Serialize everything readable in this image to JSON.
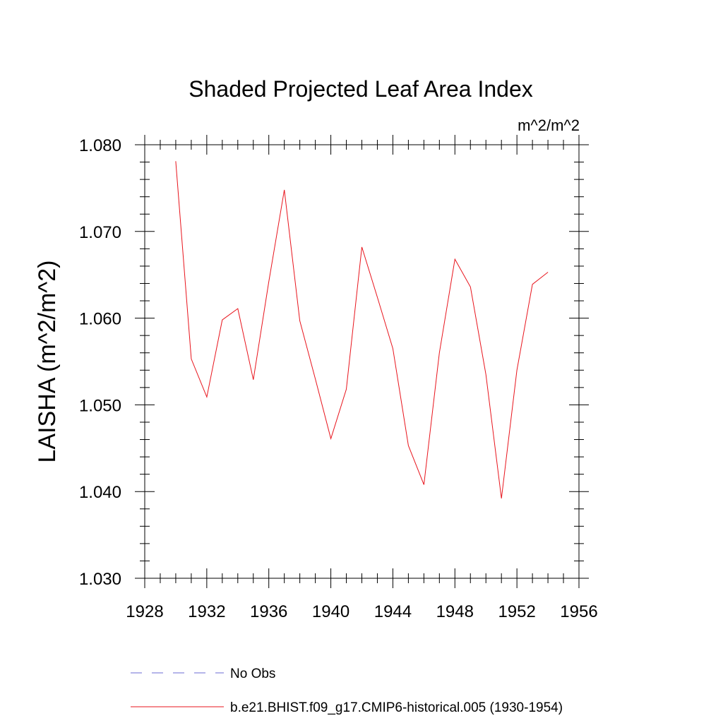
{
  "chart_data": {
    "type": "line",
    "title": "Shaded Projected Leaf Area Index",
    "units": "m^2/m^2",
    "ylabel": "LAISHA  (m^2/m^2)",
    "xlabel": "",
    "xlim": [
      1928,
      1956
    ],
    "ylim": [
      1.03,
      1.08
    ],
    "xticks": [
      1928,
      1932,
      1936,
      1940,
      1944,
      1948,
      1952,
      1956
    ],
    "xtick_labels": [
      "1928",
      "1932",
      "1936",
      "1940",
      "1944",
      "1948",
      "1952",
      "1956"
    ],
    "yticks": [
      1.03,
      1.04,
      1.05,
      1.06,
      1.07,
      1.08
    ],
    "ytick_labels": [
      "1.030",
      "1.040",
      "1.050",
      "1.060",
      "1.070",
      "1.080"
    ],
    "grid": false,
    "legend_position": "bottom",
    "series": [
      {
        "name": "b.e21.BHIST.f09_g17.CMIP6-historical.005 (1930-1954)",
        "color": "#e8141c",
        "style": "solid",
        "x": [
          1930,
          1931,
          1932,
          1933,
          1934,
          1935,
          1936,
          1937,
          1938,
          1939,
          1940,
          1941,
          1942,
          1943,
          1944,
          1945,
          1946,
          1947,
          1948,
          1949,
          1950,
          1951,
          1952,
          1953,
          1954
        ],
        "y": [
          1.0781,
          1.0553,
          1.0509,
          1.0598,
          1.0611,
          1.0529,
          1.0642,
          1.0748,
          1.0597,
          1.053,
          1.0461,
          1.0518,
          1.0682,
          1.0624,
          1.0565,
          1.0453,
          1.0408,
          1.056,
          1.0668,
          1.0636,
          1.0535,
          1.0392,
          1.054,
          1.0639,
          1.0653
        ]
      }
    ],
    "legend": [
      {
        "label": "No Obs",
        "color": "#6b6bd6",
        "style": "dashed"
      },
      {
        "label": "b.e21.BHIST.f09_g17.CMIP6-historical.005 (1930-1954)",
        "color": "#e8141c",
        "style": "solid"
      }
    ]
  }
}
